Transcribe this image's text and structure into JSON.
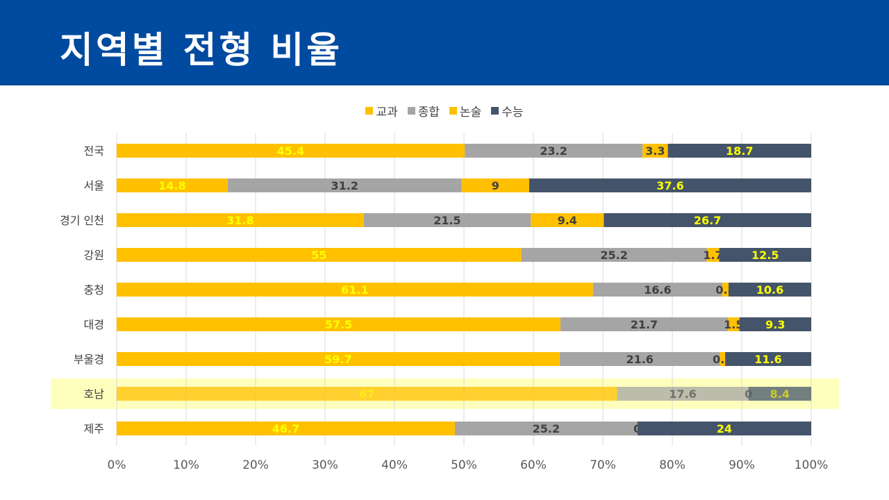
{
  "header": {
    "title": "지역별 전형 비율"
  },
  "colors": {
    "header_bg": "#004a9f",
    "highlight_band": "#ffff99"
  },
  "chart_data": {
    "type": "bar",
    "orientation": "horizontal",
    "stacked": "percent",
    "categories": [
      "전국",
      "서울",
      "경기 인천",
      "강원",
      "충청",
      "대경",
      "부울경",
      "호남",
      "제주"
    ],
    "series": [
      {
        "name": "교과",
        "color": "#ffc000",
        "label_color": "#ffff00",
        "values": [
          45.4,
          14.8,
          31.8,
          55,
          61.1,
          57.5,
          59.7,
          67,
          46.7
        ]
      },
      {
        "name": "종합",
        "color": "#a5a5a5",
        "label_color": "#404040",
        "values": [
          23.2,
          31.2,
          21.5,
          25.2,
          16.6,
          21.7,
          21.6,
          17.6,
          25.2
        ]
      },
      {
        "name": "논술",
        "color": "#ffc000",
        "label_color": "#404040",
        "values": [
          3.3,
          9,
          9.4,
          1.7,
          0.8,
          1.5,
          0.7,
          0,
          0
        ]
      },
      {
        "name": "수능",
        "color": "#44546a",
        "label_color": "#ffff00",
        "values": [
          18.7,
          37.6,
          26.7,
          12.5,
          10.6,
          9.3,
          11.6,
          8.4,
          24
        ]
      }
    ],
    "x_ticks": [
      "0%",
      "10%",
      "20%",
      "30%",
      "40%",
      "50%",
      "60%",
      "70%",
      "80%",
      "90%",
      "100%"
    ],
    "xlim": [
      0,
      100
    ],
    "grid": true,
    "legend": "top",
    "highlighted_category": "호남"
  }
}
